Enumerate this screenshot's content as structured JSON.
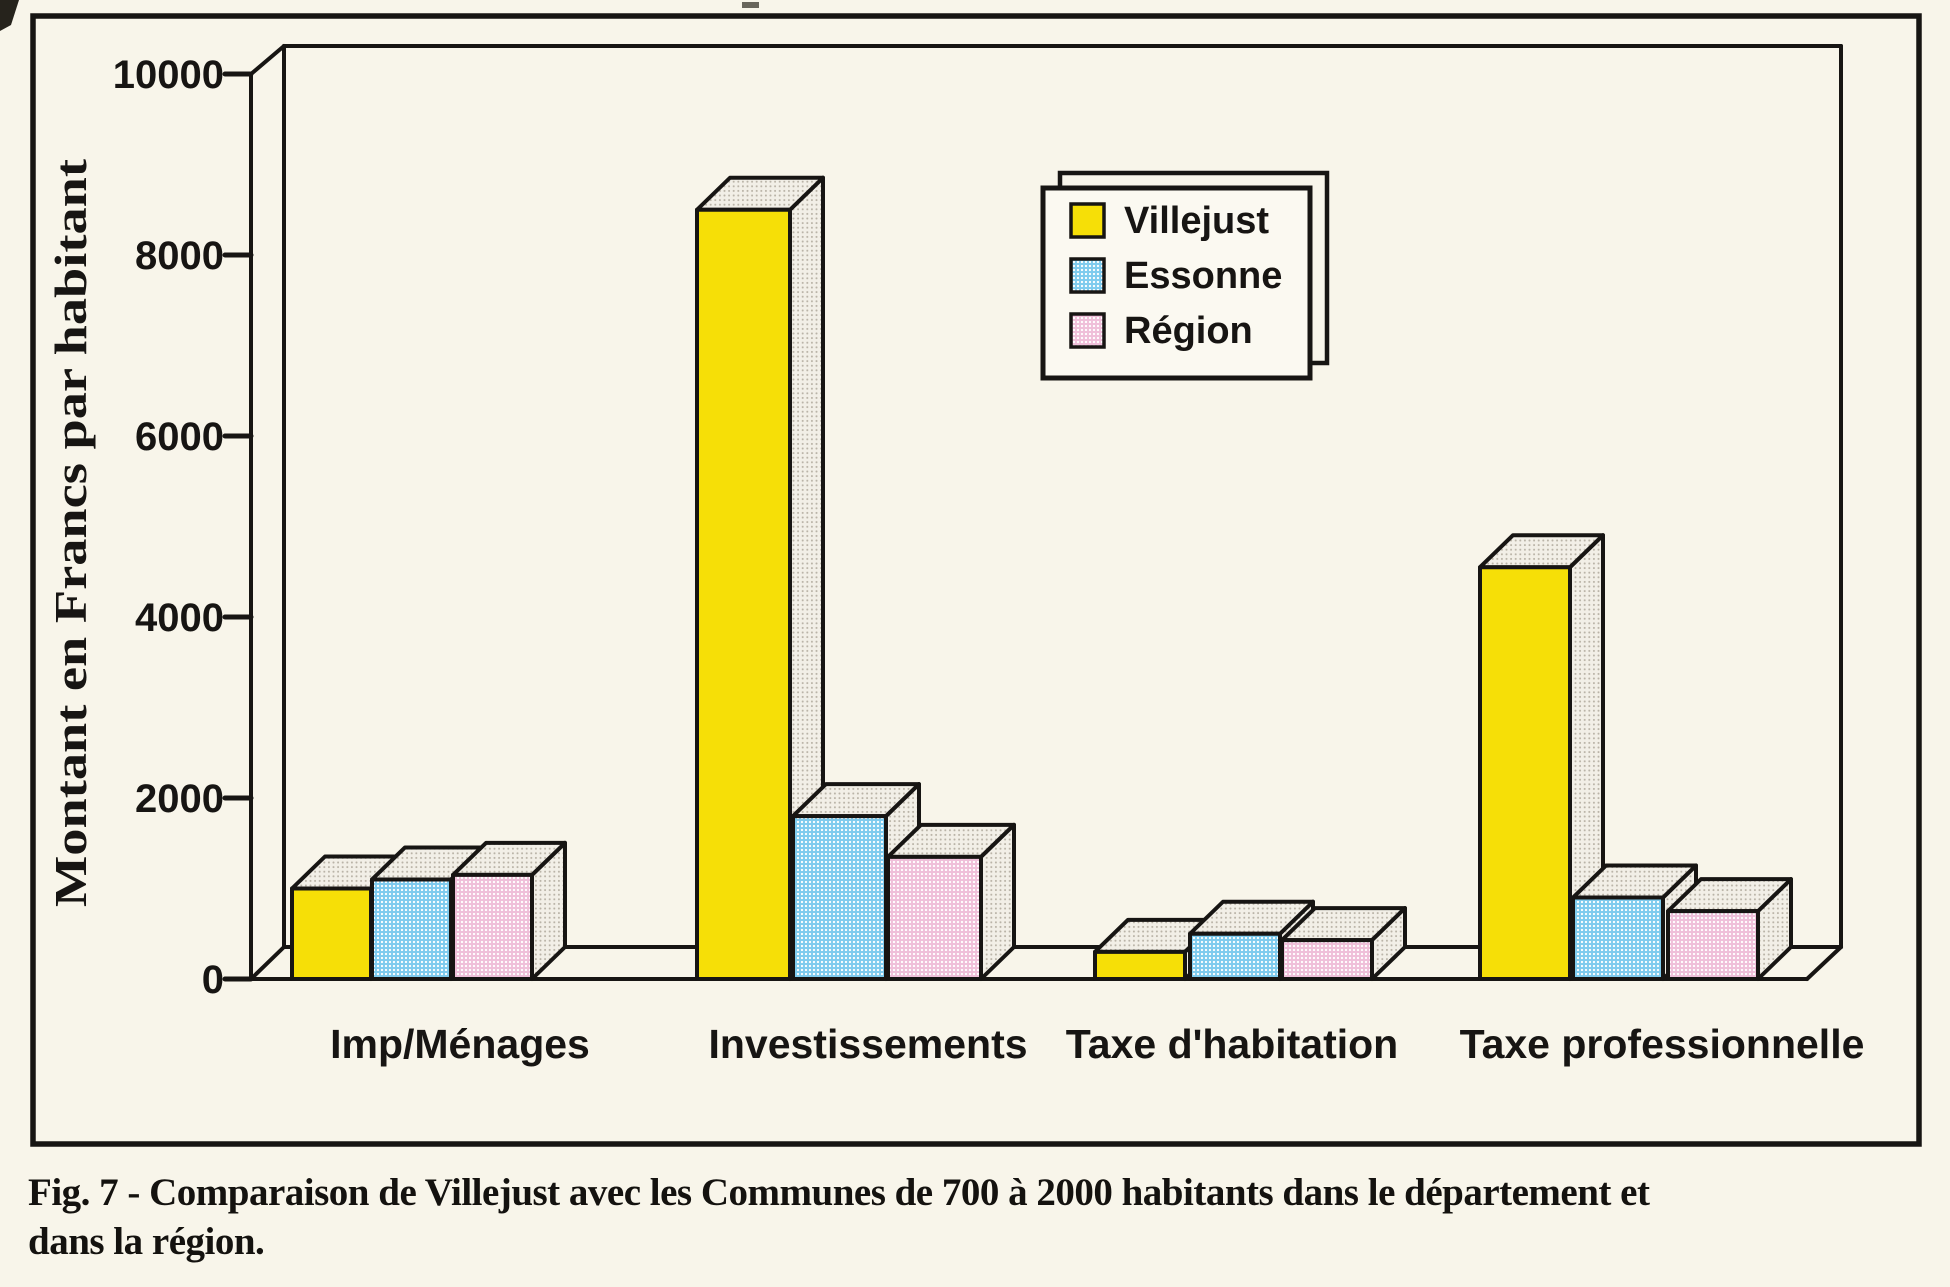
{
  "figure": {
    "caption_line1": "Fig. 7 - Comparaison de Villejust avec les Communes de 700 à 2000 habitants dans le département et",
    "caption_line2": "dans la région."
  },
  "chart_data": {
    "type": "bar",
    "style": "3d-block-bars-scanned-print",
    "title": "",
    "xlabel": "",
    "ylabel": "Montant en Francs par habitant",
    "categories": [
      "Imp/Ménages",
      "Investissements",
      "Taxe d'habitation",
      "Taxe professionnelle"
    ],
    "series": [
      {
        "name": "Villejust",
        "color": "#f6df07",
        "halftone": false,
        "values": [
          1000,
          8500,
          300,
          4550
        ]
      },
      {
        "name": "Essonne",
        "color": "#7ecbee",
        "halftone": true,
        "values": [
          1100,
          1800,
          500,
          900
        ]
      },
      {
        "name": "Région",
        "color": "#efbfd9",
        "halftone": true,
        "values": [
          1150,
          1350,
          430,
          750
        ]
      }
    ],
    "ylim": [
      0,
      10000
    ],
    "yticks": [
      0,
      2000,
      4000,
      6000,
      8000,
      10000
    ],
    "grid": false,
    "legend_position": "upper right",
    "ink_color": "#171513",
    "paper_color": "#f8f5ea",
    "shaded_face_color": "#f2efe7"
  }
}
